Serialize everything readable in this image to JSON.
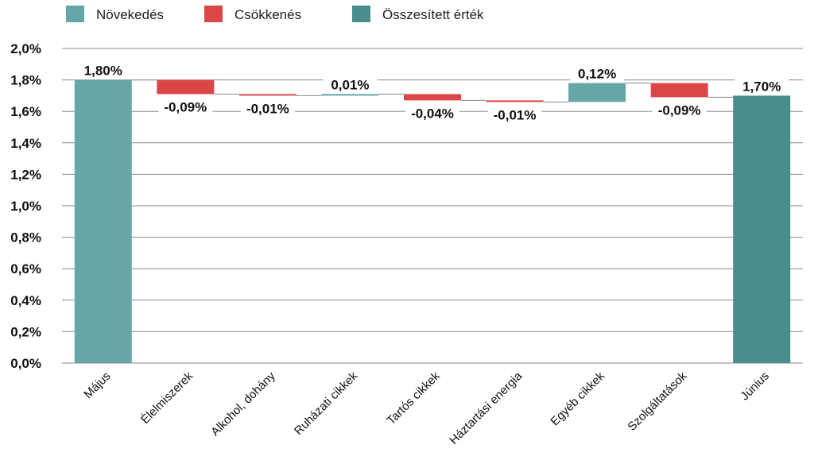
{
  "chart_data": {
    "type": "bar",
    "subtype": "waterfall",
    "categories": [
      "Május",
      "Élelmiszerek",
      "Alkohol, dohány",
      "Ruházati cikkek",
      "Tartós cikkek",
      "Háztartási energia",
      "Egyéb cikkek",
      "Szolgáltatások",
      "Június"
    ],
    "values": [
      1.8,
      -0.09,
      -0.01,
      0.01,
      -0.04,
      -0.01,
      0.12,
      -0.09,
      1.7
    ],
    "kinds": [
      "total",
      "decrease",
      "decrease",
      "increase",
      "decrease",
      "decrease",
      "increase",
      "decrease",
      "total"
    ],
    "value_labels": [
      "1,80%",
      "-0,09%",
      "-0,01%",
      "0,01%",
      "-0,04%",
      "-0,01%",
      "0,12%",
      "-0,09%",
      "1,70%"
    ],
    "ylim": [
      0,
      2.0
    ],
    "yticks": [
      0,
      0.2,
      0.4,
      0.6,
      0.8,
      1.0,
      1.2,
      1.4,
      1.6,
      1.8,
      2.0
    ],
    "ytick_labels": [
      "0,0%",
      "0,2%",
      "0,4%",
      "0,6%",
      "0,8%",
      "1,0%",
      "1,2%",
      "1,4%",
      "1,6%",
      "1,8%",
      "2,0%"
    ],
    "grid": true,
    "legend_position": "top-left",
    "legend": [
      {
        "label": "Növekedés",
        "color": "#66a6a8"
      },
      {
        "label": "Csökkenés",
        "color": "#dd4648"
      },
      {
        "label": "Összesített érték",
        "color": "#4a8b8e"
      }
    ],
    "colors": {
      "increase": "#66a6a8",
      "decrease": "#dd4648",
      "total_start": "#66a6a8",
      "total_end": "#4a8b8e"
    },
    "title": "",
    "xlabel": "",
    "ylabel": ""
  }
}
